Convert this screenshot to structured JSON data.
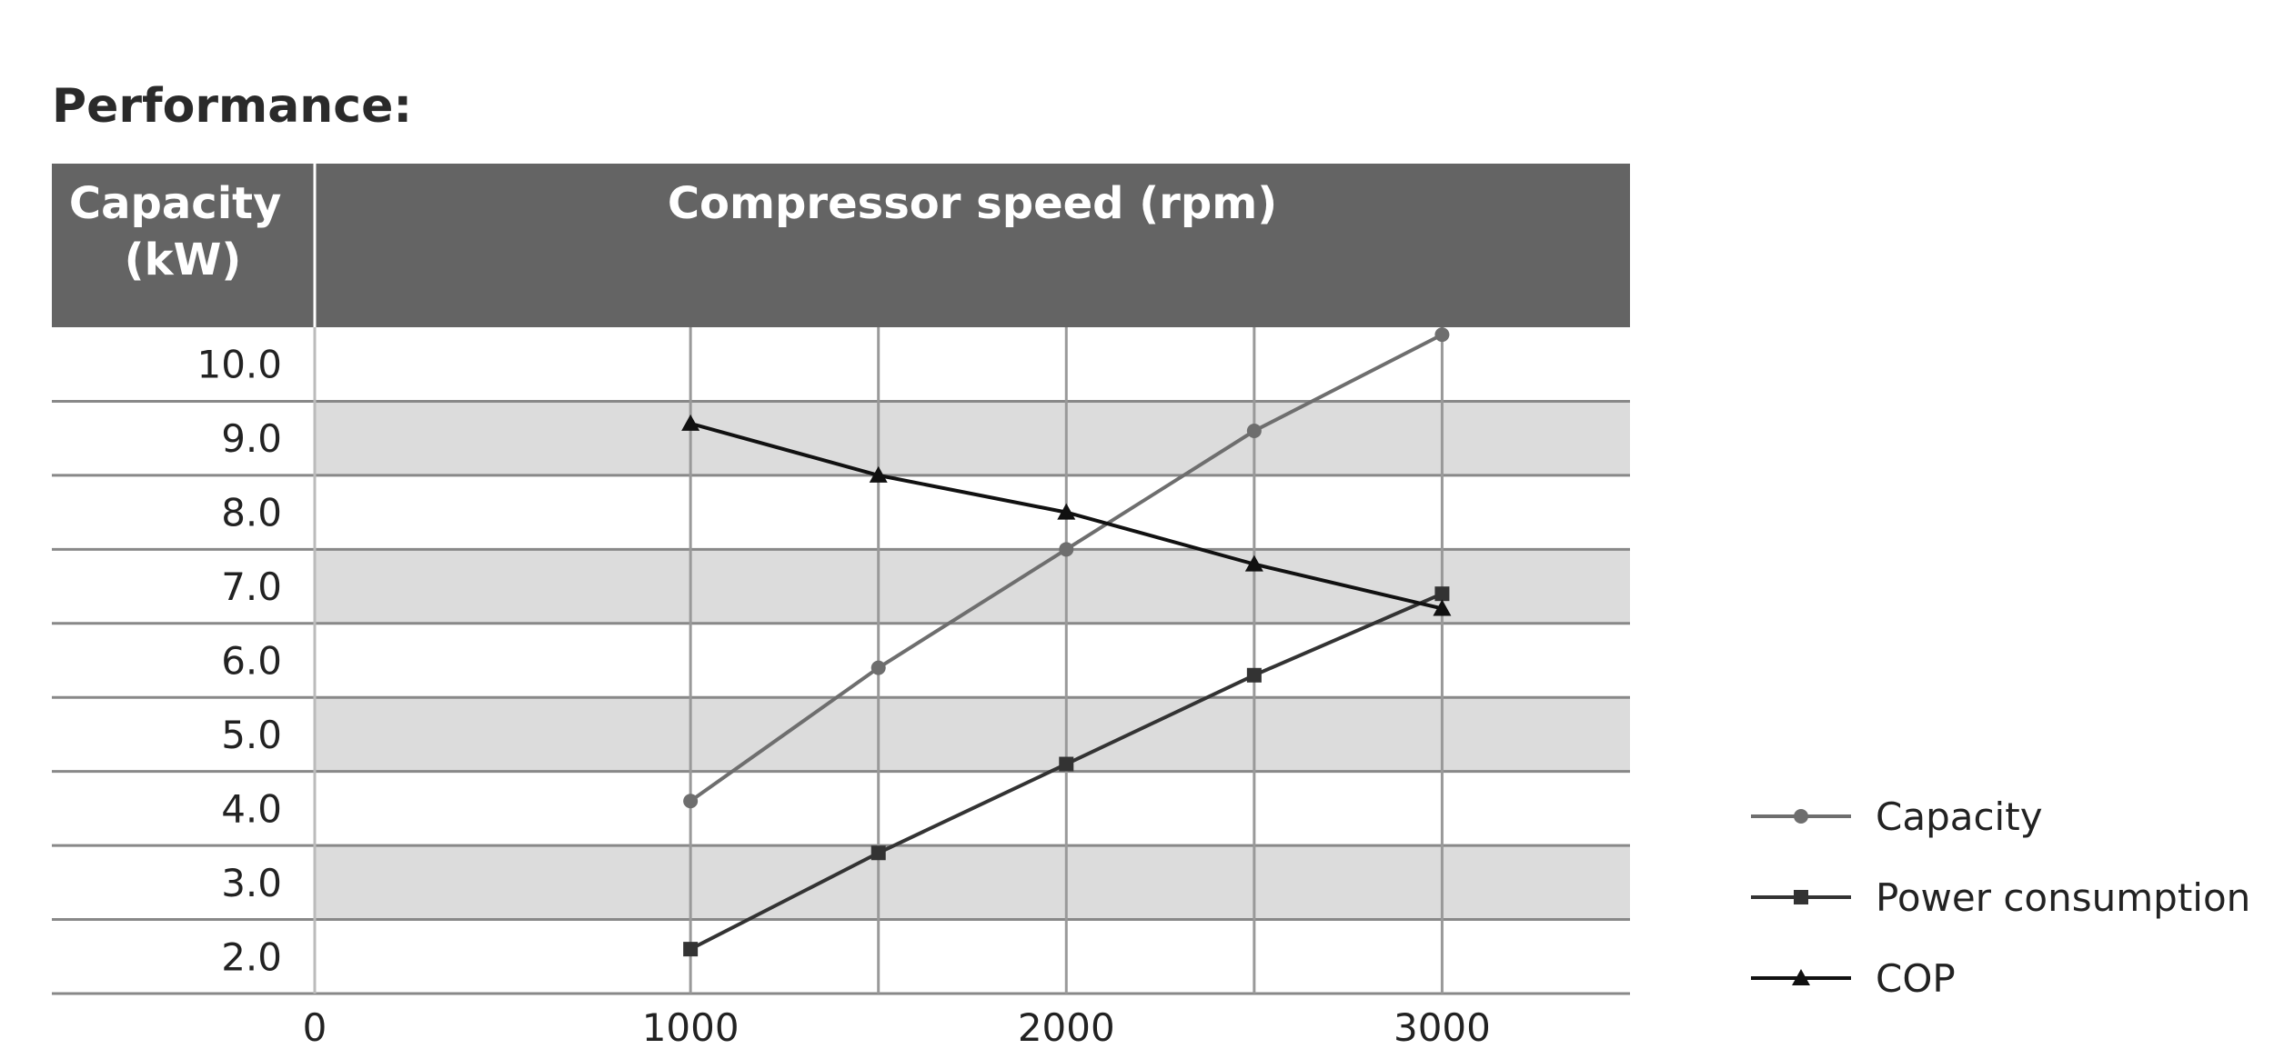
{
  "title": "Performance:",
  "chart_data": {
    "type": "line",
    "ylabel": "Capacity\n(kW)",
    "xlabel": "Compressor speed (rpm)",
    "ylim": [
      1.5,
      10.5
    ],
    "xlim": [
      0,
      3500
    ],
    "yticks": [
      "2.0",
      "3.0",
      "4.0",
      "5.0",
      "6.0",
      "7.0",
      "8.0",
      "9.0",
      "10.0"
    ],
    "xticks": [
      "0",
      "1000",
      "2000",
      "3000"
    ],
    "x_gridlines": [
      1000,
      1500,
      2000,
      2500,
      3000
    ],
    "x": [
      1000,
      1500,
      2000,
      2500,
      3000
    ],
    "series": [
      {
        "name": "Capacity",
        "values": [
          4.1,
          5.9,
          7.5,
          9.1,
          10.4
        ],
        "marker": "circle",
        "color": "#6e6e6e"
      },
      {
        "name": "Power consumption",
        "values": [
          2.1,
          3.4,
          4.6,
          5.8,
          6.9
        ],
        "marker": "square",
        "color": "#333333"
      },
      {
        "name": "COP",
        "values": [
          9.2,
          8.5,
          8.0,
          7.3,
          6.7
        ],
        "marker": "triangle",
        "color": "#111111"
      }
    ],
    "legend_position": "bottom-right",
    "band_colors": [
      "#ffffff",
      "#dcdcdc"
    ],
    "header_color": "#646464"
  }
}
